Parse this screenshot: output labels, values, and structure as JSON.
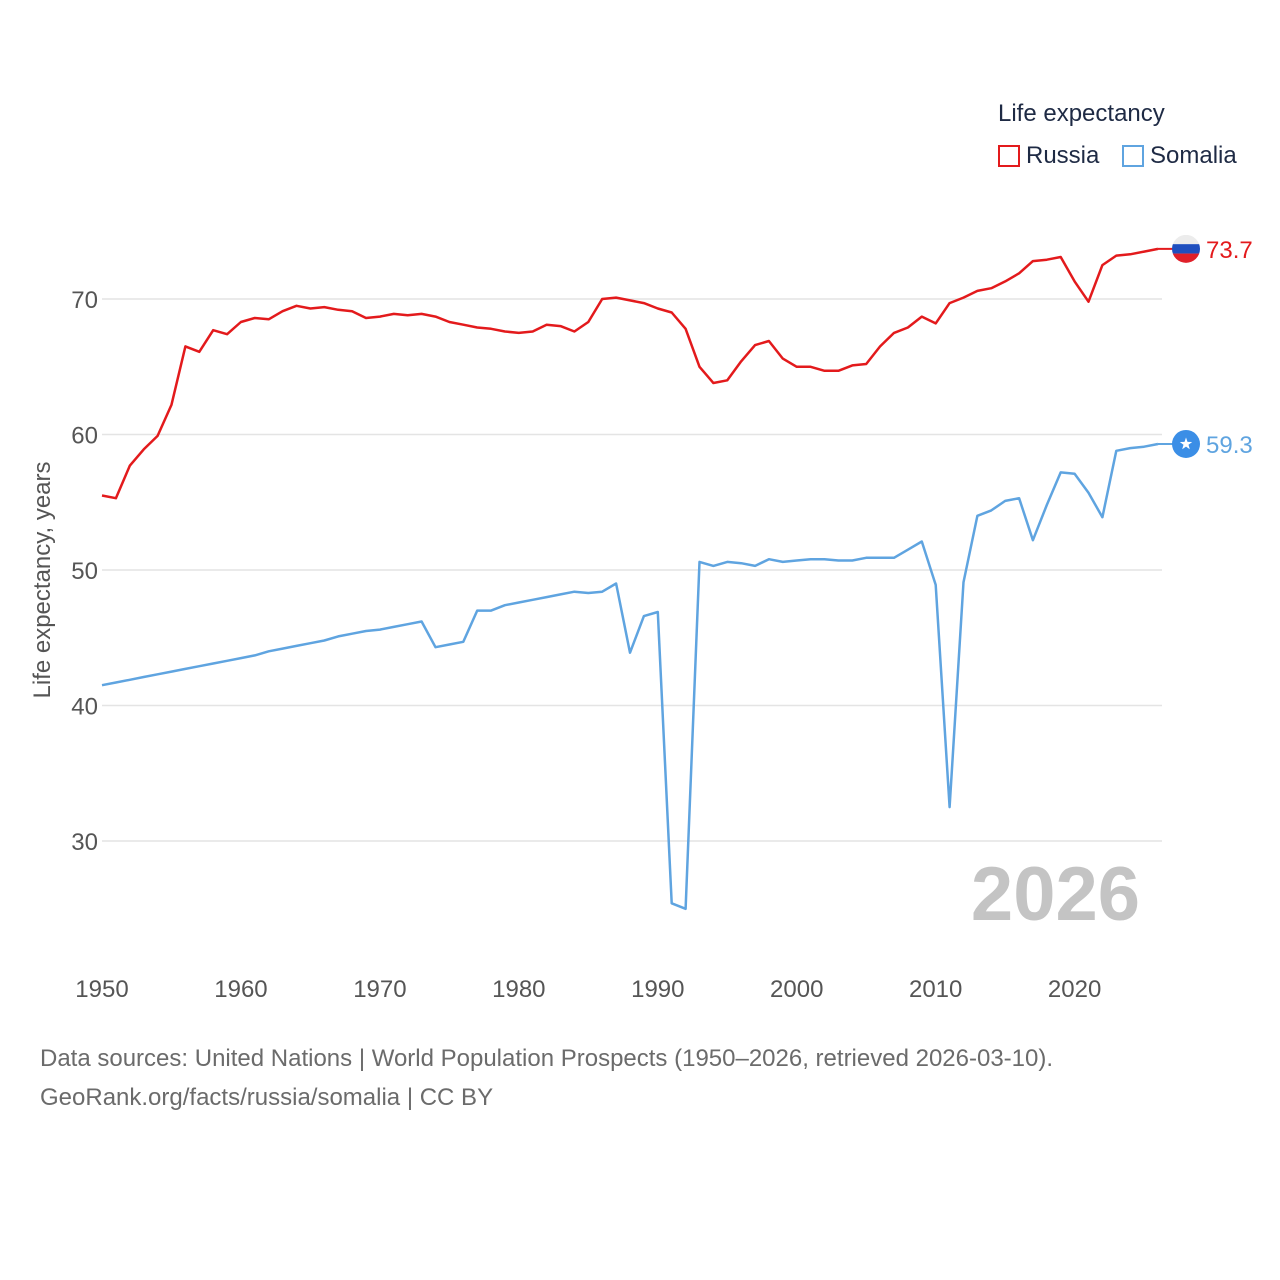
{
  "chart_data": {
    "type": "line",
    "ylabel": "Life expectancy, years",
    "xlabel": "",
    "xlim": [
      1950,
      2026
    ],
    "ylim": [
      22,
      78
    ],
    "xticks": [
      1950,
      1960,
      1970,
      1980,
      1990,
      2000,
      2010,
      2020
    ],
    "yticks": [
      30,
      40,
      50,
      60,
      70
    ],
    "grid": true,
    "legend_title": "Life expectancy",
    "legend_position": "top-right",
    "year_watermark": "2026",
    "x": [
      1950,
      1951,
      1952,
      1953,
      1954,
      1955,
      1956,
      1957,
      1958,
      1959,
      1960,
      1961,
      1962,
      1963,
      1964,
      1965,
      1966,
      1967,
      1968,
      1969,
      1970,
      1971,
      1972,
      1973,
      1974,
      1975,
      1976,
      1977,
      1978,
      1979,
      1980,
      1981,
      1982,
      1983,
      1984,
      1985,
      1986,
      1987,
      1988,
      1989,
      1990,
      1991,
      1992,
      1993,
      1994,
      1995,
      1996,
      1997,
      1998,
      1999,
      2000,
      2001,
      2002,
      2003,
      2004,
      2005,
      2006,
      2007,
      2008,
      2009,
      2010,
      2011,
      2012,
      2013,
      2014,
      2015,
      2016,
      2017,
      2018,
      2019,
      2020,
      2021,
      2022,
      2023,
      2024,
      2025,
      2026
    ],
    "series": [
      {
        "name": "Russia",
        "color": "#e31a1c",
        "end_label": "73.7",
        "values": [
          55.5,
          55.3,
          57.7,
          58.9,
          59.9,
          62.2,
          66.5,
          66.1,
          67.7,
          67.4,
          68.3,
          68.6,
          68.5,
          69.1,
          69.5,
          69.3,
          69.4,
          69.2,
          69.1,
          68.6,
          68.7,
          68.9,
          68.8,
          68.9,
          68.7,
          68.3,
          68.1,
          67.9,
          67.8,
          67.6,
          67.5,
          67.6,
          68.1,
          68.0,
          67.6,
          68.3,
          70.0,
          70.1,
          69.9,
          69.7,
          69.3,
          69.0,
          67.8,
          65.0,
          63.8,
          64.0,
          65.4,
          66.6,
          66.9,
          65.6,
          65.0,
          65.0,
          64.7,
          64.7,
          65.1,
          65.2,
          66.5,
          67.5,
          67.9,
          68.7,
          68.2,
          69.7,
          70.1,
          70.6,
          70.8,
          71.3,
          71.9,
          72.8,
          72.9,
          73.1,
          71.3,
          69.8,
          72.5,
          73.2,
          73.3,
          73.5,
          73.7
        ]
      },
      {
        "name": "Somalia",
        "color": "#5fa4e0",
        "end_label": "59.3",
        "values": [
          41.5,
          41.7,
          41.9,
          42.1,
          42.3,
          42.5,
          42.7,
          42.9,
          43.1,
          43.3,
          43.5,
          43.7,
          44.0,
          44.2,
          44.4,
          44.6,
          44.8,
          45.1,
          45.3,
          45.5,
          45.6,
          45.8,
          46.0,
          46.2,
          44.3,
          44.5,
          44.7,
          47.0,
          47.0,
          47.4,
          47.6,
          47.8,
          48.0,
          48.2,
          48.4,
          48.3,
          48.4,
          49.0,
          43.9,
          46.6,
          46.9,
          25.4,
          25.0,
          50.6,
          50.3,
          50.6,
          50.5,
          50.3,
          50.8,
          50.6,
          50.7,
          50.8,
          50.8,
          50.7,
          50.7,
          50.9,
          50.9,
          50.9,
          51.5,
          52.1,
          48.9,
          32.5,
          49.1,
          54.0,
          54.4,
          55.1,
          55.3,
          52.2,
          54.8,
          57.2,
          57.1,
          55.7,
          53.9,
          58.8,
          59.0,
          59.1,
          59.3
        ]
      }
    ]
  },
  "source": {
    "line1": "Data sources: United Nations | World Population Prospects (1950–2026, retrieved 2026-03-10).",
    "line2": "GeoRank.org/facts/russia/somalia | CC BY"
  }
}
